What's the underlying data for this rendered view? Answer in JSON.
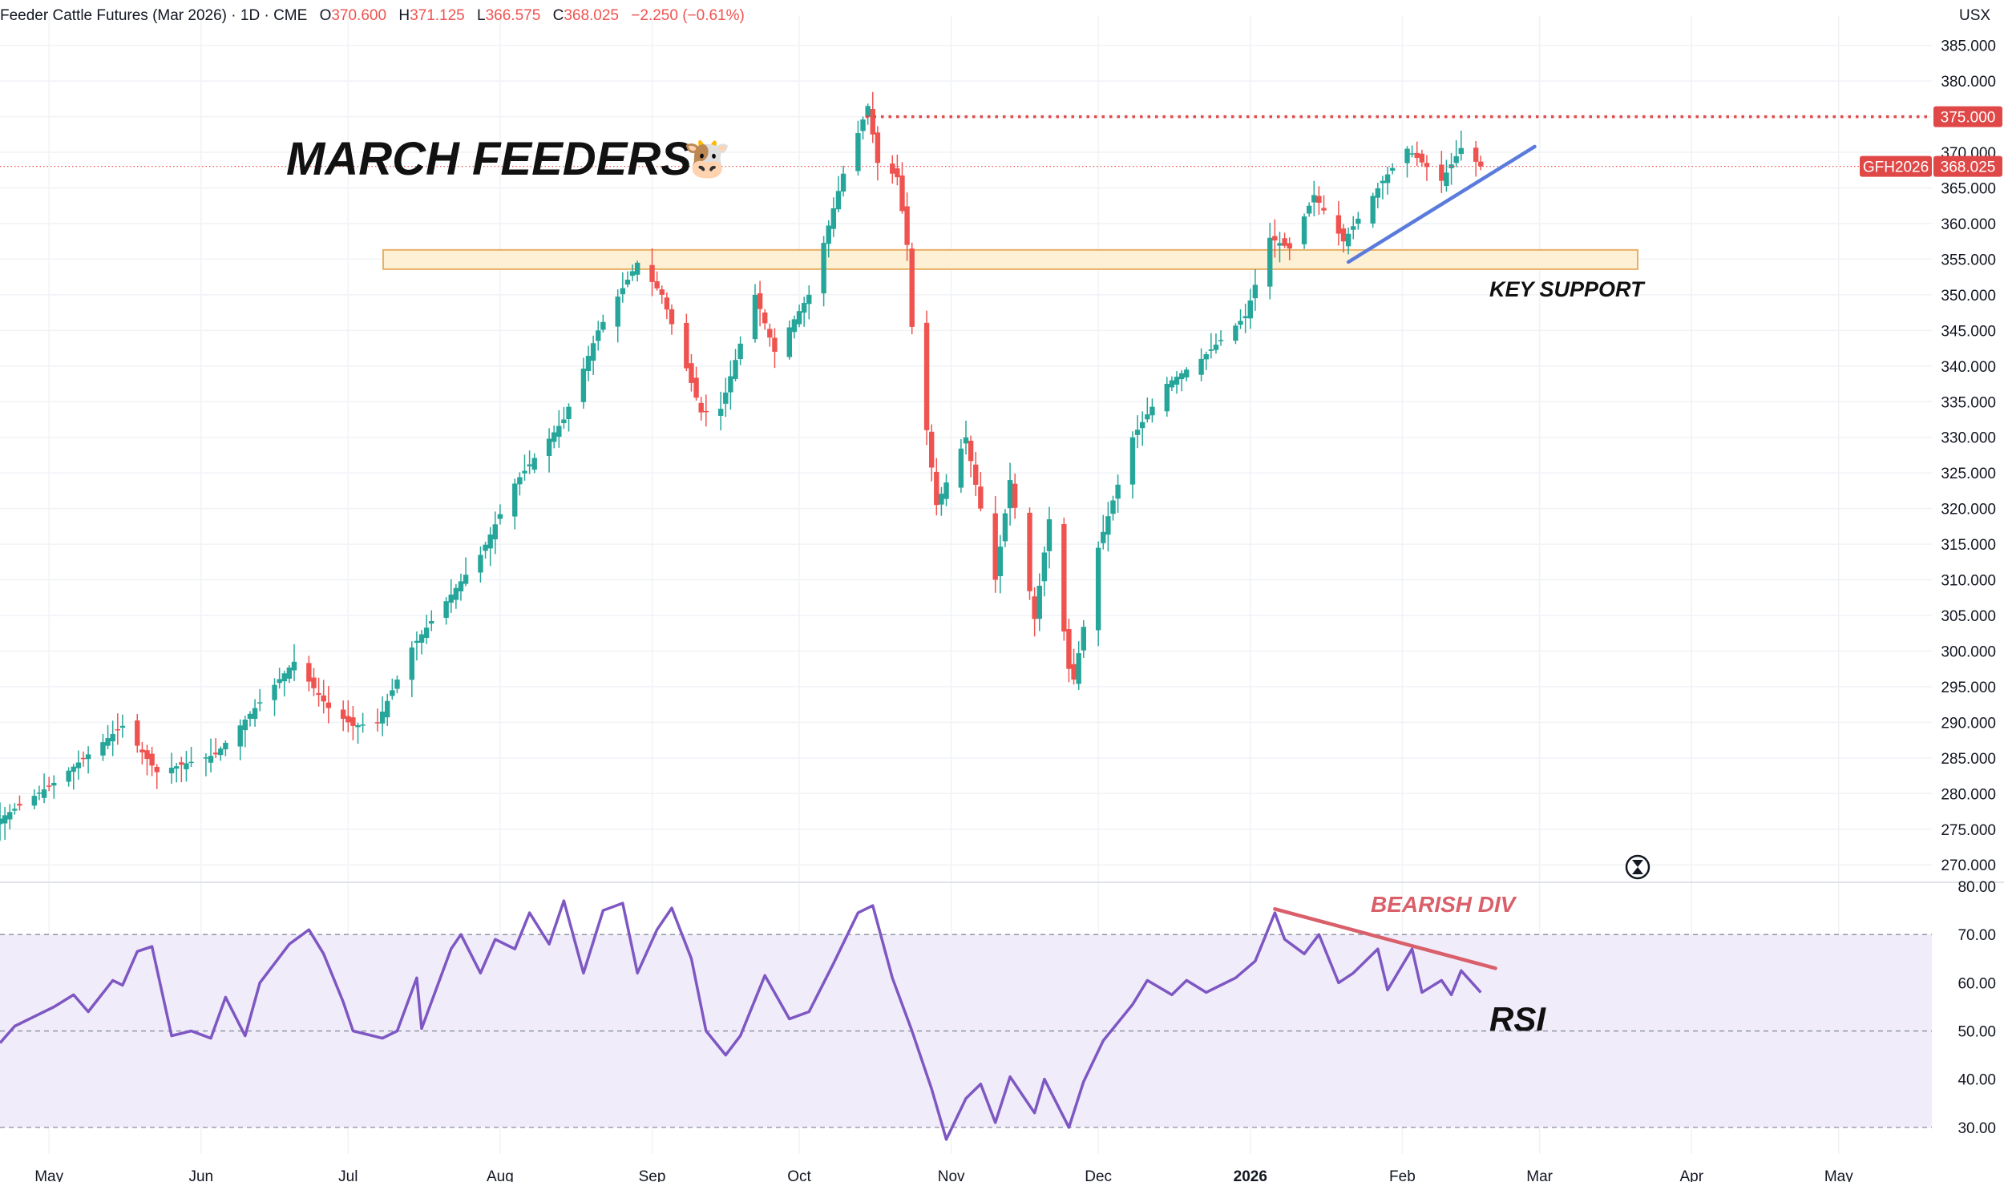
{
  "header": {
    "symbol": "Feeder Cattle Futures (Mar 2026) · 1D · CME",
    "o_label": "O",
    "o_value": "370.600",
    "h_label": "H",
    "h_value": "371.125",
    "l_label": "L",
    "l_value": "366.575",
    "c_label": "C",
    "c_value": "368.025",
    "change": "−2.250 (−0.61%)"
  },
  "currency": "USX",
  "annotations": {
    "title": "MARCH FEEDERS",
    "title_emoji": "🐮",
    "key_support": "KEY SUPPORT",
    "bearish_div": "BEARISH DIV",
    "rsi_label": "RSI"
  },
  "price_labels": {
    "resistance": "375.000",
    "ticker": "GFH2026",
    "last": "368.025"
  },
  "colors": {
    "up": "#26a69a",
    "down": "#ef5350",
    "resistance": "#e04848",
    "support_fill": "#fdf0d4",
    "support_stroke": "#e8b066",
    "trendline": "#5b7bdc",
    "divergence": "#d9606a",
    "rsi_line": "#7e57c2",
    "rsi_band": "#f0ecfa"
  },
  "chart_data": [
    {
      "type": "candlestick",
      "title": "Feeder Cattle Futures (Mar 2026)",
      "ylim": [
        268,
        388
      ],
      "y_ticks": [
        270,
        275,
        280,
        285,
        290,
        295,
        300,
        305,
        310,
        315,
        320,
        325,
        330,
        335,
        340,
        345,
        350,
        355,
        360,
        365,
        370,
        375,
        380,
        385
      ],
      "x_range": [
        "2025-04-21",
        "2026-05-20"
      ],
      "x_ticks": [
        {
          "label": "May",
          "date": "2025-05-01"
        },
        {
          "label": "Jun",
          "date": "2025-06-01"
        },
        {
          "label": "Jul",
          "date": "2025-07-01"
        },
        {
          "label": "Aug",
          "date": "2025-08-01"
        },
        {
          "label": "Sep",
          "date": "2025-09-01"
        },
        {
          "label": "Oct",
          "date": "2025-10-01"
        },
        {
          "label": "Nov",
          "date": "2025-11-01"
        },
        {
          "label": "Dec",
          "date": "2025-12-01"
        },
        {
          "label": "2026",
          "date": "2026-01-01"
        },
        {
          "label": "Feb",
          "date": "2026-02-01"
        },
        {
          "label": "Mar",
          "date": "2026-03-01"
        },
        {
          "label": "Apr",
          "date": "2026-04-01"
        },
        {
          "label": "May",
          "date": "2026-05-01"
        }
      ],
      "last_price": 368.025,
      "resistance": 375.0,
      "support_zone": [
        353.6,
        356.3
      ],
      "trendline": [
        {
          "date": "2026-01-21",
          "price": 354.6
        },
        {
          "date": "2026-02-28",
          "price": 370.8
        }
      ],
      "close_path": [
        {
          "date": "2025-04-21",
          "close": 276.5
        },
        {
          "date": "2025-05-02",
          "close": 281.5
        },
        {
          "date": "2025-05-16",
          "close": 289.5
        },
        {
          "date": "2025-05-23",
          "close": 283.0
        },
        {
          "date": "2025-06-04",
          "close": 285.5
        },
        {
          "date": "2025-06-12",
          "close": 292.0
        },
        {
          "date": "2025-06-20",
          "close": 298.5
        },
        {
          "date": "2025-06-27",
          "close": 292.0
        },
        {
          "date": "2025-07-02",
          "close": 289.5
        },
        {
          "date": "2025-07-07",
          "close": 290.0
        },
        {
          "date": "2025-07-14",
          "close": 300.5
        },
        {
          "date": "2025-07-28",
          "close": 313.5
        },
        {
          "date": "2025-08-04",
          "close": 323.5
        },
        {
          "date": "2025-08-14",
          "close": 332.5
        },
        {
          "date": "2025-08-21",
          "close": 345.0
        },
        {
          "date": "2025-08-29",
          "close": 354.5
        },
        {
          "date": "2025-09-03",
          "close": 350.0
        },
        {
          "date": "2025-09-11",
          "close": 333.5
        },
        {
          "date": "2025-09-15",
          "close": 334.0
        },
        {
          "date": "2025-09-22",
          "close": 350.0
        },
        {
          "date": "2025-09-26",
          "close": 342.0
        },
        {
          "date": "2025-10-03",
          "close": 350.0
        },
        {
          "date": "2025-10-10",
          "close": 367.0
        },
        {
          "date": "2025-10-15",
          "close": 376.5
        },
        {
          "date": "2025-10-17",
          "close": 368.5
        },
        {
          "date": "2025-10-21",
          "close": 366.5
        },
        {
          "date": "2025-10-23",
          "close": 357.0
        },
        {
          "date": "2025-10-24",
          "close": 345.5
        },
        {
          "date": "2025-10-27",
          "close": 331.0
        },
        {
          "date": "2025-10-29",
          "close": 320.5
        },
        {
          "date": "2025-11-04",
          "close": 330.0
        },
        {
          "date": "2025-11-10",
          "close": 310.0
        },
        {
          "date": "2025-11-13",
          "close": 324.0
        },
        {
          "date": "2025-11-18",
          "close": 304.5
        },
        {
          "date": "2025-11-21",
          "close": 318.5
        },
        {
          "date": "2025-11-25",
          "close": 297.5
        },
        {
          "date": "2025-11-26",
          "close": 296.0
        },
        {
          "date": "2025-12-01",
          "close": 314.5
        },
        {
          "date": "2025-12-08",
          "close": 330.0
        },
        {
          "date": "2025-12-15",
          "close": 337.5
        },
        {
          "date": "2025-12-22",
          "close": 341.0
        },
        {
          "date": "2025-12-31",
          "close": 347.0
        },
        {
          "date": "2026-01-05",
          "close": 358.0
        },
        {
          "date": "2026-01-09",
          "close": 356.5
        },
        {
          "date": "2026-01-14",
          "close": 364.0
        },
        {
          "date": "2026-01-20",
          "close": 357.5
        },
        {
          "date": "2026-01-28",
          "close": 366.0
        },
        {
          "date": "2026-02-02",
          "close": 370.5
        },
        {
          "date": "2026-02-09",
          "close": 366.0
        },
        {
          "date": "2026-02-13",
          "close": 370.6
        },
        {
          "date": "2026-02-17",
          "close": 368.025
        }
      ]
    },
    {
      "type": "line",
      "title": "RSI",
      "ylim": [
        24.5,
        80.5
      ],
      "y_ticks": [
        30,
        40,
        50,
        60,
        70,
        80
      ],
      "bands": {
        "overbought": 70,
        "middle": 50,
        "oversold": 30
      },
      "x_range": [
        "2025-04-21",
        "2026-05-20"
      ],
      "series": [
        {
          "name": "RSI",
          "points": [
            {
              "date": "2025-04-21",
              "value": 47.5
            },
            {
              "date": "2025-04-24",
              "value": 51.0
            },
            {
              "date": "2025-05-02",
              "value": 55.0
            },
            {
              "date": "2025-05-06",
              "value": 57.5
            },
            {
              "date": "2025-05-09",
              "value": 54.0
            },
            {
              "date": "2025-05-14",
              "value": 60.5
            },
            {
              "date": "2025-05-16",
              "value": 59.5
            },
            {
              "date": "2025-05-19",
              "value": 66.5
            },
            {
              "date": "2025-05-22",
              "value": 67.5
            },
            {
              "date": "2025-05-26",
              "value": 49.0
            },
            {
              "date": "2025-05-30",
              "value": 50.0
            },
            {
              "date": "2025-06-03",
              "value": 48.5
            },
            {
              "date": "2025-06-06",
              "value": 57.0
            },
            {
              "date": "2025-06-10",
              "value": 49.0
            },
            {
              "date": "2025-06-13",
              "value": 60.0
            },
            {
              "date": "2025-06-19",
              "value": 68.0
            },
            {
              "date": "2025-06-23",
              "value": 71.0
            },
            {
              "date": "2025-06-26",
              "value": 66.0
            },
            {
              "date": "2025-06-30",
              "value": 56.0
            },
            {
              "date": "2025-07-02",
              "value": 50.0
            },
            {
              "date": "2025-07-08",
              "value": 48.5
            },
            {
              "date": "2025-07-11",
              "value": 50.0
            },
            {
              "date": "2025-07-15",
              "value": 61.0
            },
            {
              "date": "2025-07-16",
              "value": 50.5
            },
            {
              "date": "2025-07-22",
              "value": 67.0
            },
            {
              "date": "2025-07-24",
              "value": 70.0
            },
            {
              "date": "2025-07-28",
              "value": 62.0
            },
            {
              "date": "2025-07-31",
              "value": 69.0
            },
            {
              "date": "2025-08-04",
              "value": 67.0
            },
            {
              "date": "2025-08-07",
              "value": 74.5
            },
            {
              "date": "2025-08-11",
              "value": 68.0
            },
            {
              "date": "2025-08-14",
              "value": 77.0
            },
            {
              "date": "2025-08-18",
              "value": 62.0
            },
            {
              "date": "2025-08-22",
              "value": 75.0
            },
            {
              "date": "2025-08-26",
              "value": 76.5
            },
            {
              "date": "2025-08-29",
              "value": 62.0
            },
            {
              "date": "2025-09-02",
              "value": 71.0
            },
            {
              "date": "2025-09-05",
              "value": 75.5
            },
            {
              "date": "2025-09-09",
              "value": 65.0
            },
            {
              "date": "2025-09-12",
              "value": 50.0
            },
            {
              "date": "2025-09-16",
              "value": 45.0
            },
            {
              "date": "2025-09-19",
              "value": 49.0
            },
            {
              "date": "2025-09-24",
              "value": 61.5
            },
            {
              "date": "2025-09-29",
              "value": 52.5
            },
            {
              "date": "2025-10-03",
              "value": 54.0
            },
            {
              "date": "2025-10-08",
              "value": 64.0
            },
            {
              "date": "2025-10-13",
              "value": 74.5
            },
            {
              "date": "2025-10-16",
              "value": 76.0
            },
            {
              "date": "2025-10-20",
              "value": 61.0
            },
            {
              "date": "2025-10-24",
              "value": 50.0
            },
            {
              "date": "2025-10-28",
              "value": 38.0
            },
            {
              "date": "2025-10-31",
              "value": 27.5
            },
            {
              "date": "2025-11-04",
              "value": 36.0
            },
            {
              "date": "2025-11-07",
              "value": 39.0
            },
            {
              "date": "2025-11-10",
              "value": 31.0
            },
            {
              "date": "2025-11-13",
              "value": 40.5
            },
            {
              "date": "2025-11-18",
              "value": 33.0
            },
            {
              "date": "2025-11-20",
              "value": 40.0
            },
            {
              "date": "2025-11-25",
              "value": 30.0
            },
            {
              "date": "2025-11-28",
              "value": 39.5
            },
            {
              "date": "2025-12-02",
              "value": 48.0
            },
            {
              "date": "2025-12-08",
              "value": 55.5
            },
            {
              "date": "2025-12-11",
              "value": 60.5
            },
            {
              "date": "2025-12-16",
              "value": 57.5
            },
            {
              "date": "2025-12-19",
              "value": 60.5
            },
            {
              "date": "2025-12-23",
              "value": 58.0
            },
            {
              "date": "2025-12-29",
              "value": 61.0
            },
            {
              "date": "2026-01-02",
              "value": 64.5
            },
            {
              "date": "2026-01-06",
              "value": 74.5
            },
            {
              "date": "2026-01-08",
              "value": 69.0
            },
            {
              "date": "2026-01-12",
              "value": 66.0
            },
            {
              "date": "2026-01-15",
              "value": 70.0
            },
            {
              "date": "2026-01-19",
              "value": 60.0
            },
            {
              "date": "2026-01-22",
              "value": 62.0
            },
            {
              "date": "2026-01-27",
              "value": 67.0
            },
            {
              "date": "2026-01-29",
              "value": 58.5
            },
            {
              "date": "2026-02-03",
              "value": 67.0
            },
            {
              "date": "2026-02-05",
              "value": 58.0
            },
            {
              "date": "2026-02-09",
              "value": 60.5
            },
            {
              "date": "2026-02-11",
              "value": 57.5
            },
            {
              "date": "2026-02-13",
              "value": 62.5
            },
            {
              "date": "2026-02-17",
              "value": 58.0
            }
          ]
        }
      ],
      "divergence_line": [
        {
          "date": "2026-01-06",
          "value": 75.3
        },
        {
          "date": "2026-02-20",
          "value": 63.0
        }
      ]
    }
  ]
}
